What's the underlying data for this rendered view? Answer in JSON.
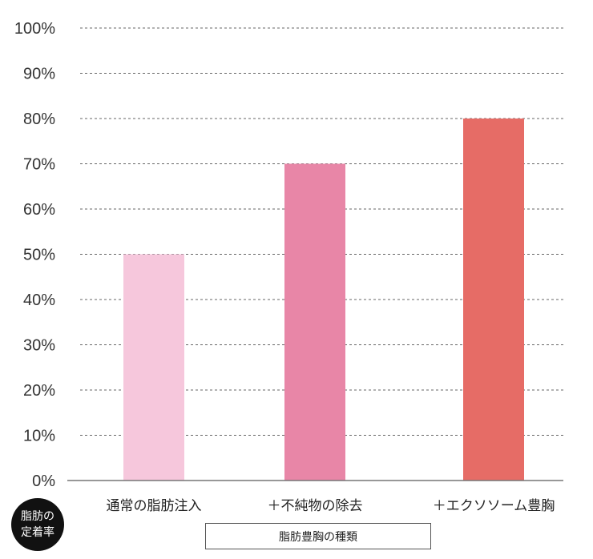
{
  "chart_data": {
    "type": "bar",
    "categories": [
      "通常の脂肪注入",
      "＋不純物の除去",
      "＋エクソソーム豊胸"
    ],
    "values": [
      50,
      70,
      80
    ],
    "colors": [
      "#f6c7dc",
      "#e886a7",
      "#e66c66"
    ],
    "ylim": [
      0,
      100
    ],
    "yticks": [
      0,
      10,
      20,
      30,
      40,
      50,
      60,
      70,
      80,
      90,
      100
    ],
    "ytick_labels": [
      "0%",
      "10%",
      "20%",
      "30%",
      "40%",
      "50%",
      "60%",
      "70%",
      "80%",
      "90%",
      "100%"
    ],
    "ylabel_line1": "脂肪の",
    "ylabel_line2": "定着率",
    "xlabel": "脂肪豊胸の種類",
    "grid": "dashed horizontal"
  }
}
